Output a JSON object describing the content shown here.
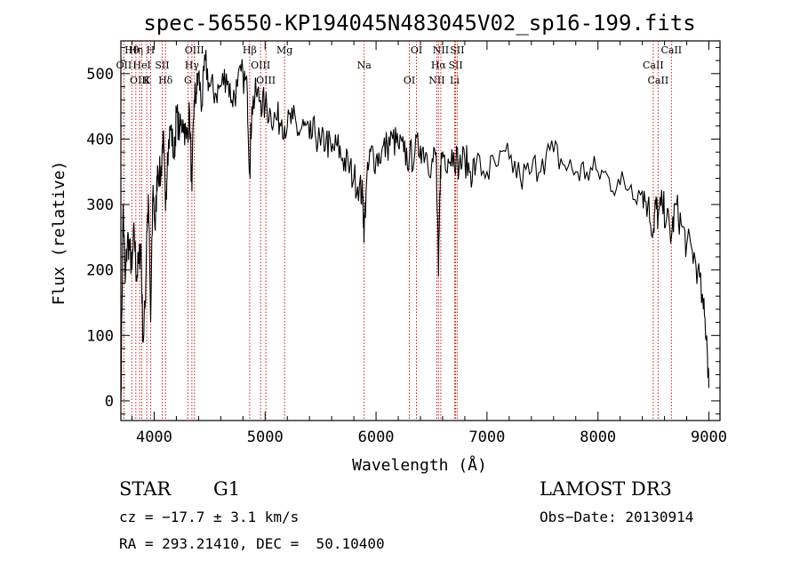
{
  "chart_data": {
    "type": "line",
    "title": "spec-56550-KP194045N483045V02_sp16-199.fits",
    "xlabel": "Wavelength (Å)",
    "ylabel": "Flux (relative)",
    "xlim": [
      3700,
      9100
    ],
    "ylim": [
      -30,
      550
    ],
    "xticks": [
      4000,
      5000,
      6000,
      7000,
      8000,
      9000
    ],
    "yticks": [
      0,
      100,
      200,
      300,
      400,
      500
    ],
    "series": [
      {
        "name": "spectrum",
        "x": [
          3700,
          3720,
          3740,
          3760,
          3780,
          3800,
          3820,
          3840,
          3860,
          3880,
          3900,
          3920,
          3933,
          3950,
          3968,
          3990,
          4010,
          4030,
          4060,
          4080,
          4102,
          4120,
          4150,
          4180,
          4200,
          4230,
          4260,
          4290,
          4320,
          4340,
          4360,
          4380,
          4400,
          4430,
          4460,
          4500,
          4550,
          4600,
          4650,
          4700,
          4750,
          4800,
          4840,
          4861,
          4880,
          4920,
          4960,
          5000,
          5050,
          5100,
          5150,
          5200,
          5250,
          5300,
          5350,
          5400,
          5450,
          5500,
          5550,
          5600,
          5650,
          5700,
          5750,
          5800,
          5850,
          5880,
          5893,
          5910,
          5950,
          6000,
          6050,
          6100,
          6150,
          6200,
          6250,
          6300,
          6350,
          6400,
          6450,
          6500,
          6540,
          6563,
          6580,
          6600,
          6650,
          6700,
          6750,
          6800,
          6850,
          6900,
          7000,
          7100,
          7200,
          7300,
          7400,
          7500,
          7600,
          7700,
          7800,
          7900,
          8000,
          8100,
          8200,
          8300,
          8400,
          8450,
          8498,
          8520,
          8542,
          8580,
          8620,
          8662,
          8700,
          8750,
          8800,
          8850,
          8900,
          8950,
          8980,
          9000
        ],
        "values": [
          0,
          300,
          180,
          250,
          230,
          200,
          260,
          190,
          210,
          240,
          90,
          150,
          260,
          300,
          120,
          330,
          260,
          360,
          340,
          410,
          290,
          380,
          420,
          370,
          440,
          410,
          430,
          400,
          440,
          320,
          460,
          470,
          500,
          450,
          520,
          480,
          470,
          480,
          500,
          460,
          480,
          500,
          470,
          350,
          450,
          470,
          460,
          450,
          440,
          430,
          430,
          420,
          430,
          410,
          420,
          400,
          410,
          390,
          400,
          380,
          390,
          370,
          360,
          340,
          330,
          310,
          260,
          320,
          380,
          370,
          380,
          390,
          400,
          390,
          380,
          370,
          380,
          390,
          380,
          360,
          380,
          190,
          360,
          380,
          370,
          380,
          360,
          370,
          350,
          360,
          350,
          360,
          370,
          340,
          350,
          370,
          380,
          360,
          350,
          350,
          350,
          340,
          330,
          330,
          320,
          300,
          260,
          300,
          280,
          300,
          280,
          250,
          300,
          270,
          240,
          230,
          200,
          140,
          100,
          20
        ]
      }
    ],
    "lines": [
      {
        "name": "Hθ",
        "x": 3798
      },
      {
        "name": "OII",
        "x": 3727
      },
      {
        "name": "OIII",
        "x": 3869
      },
      {
        "name": "Hη",
        "x": 3835
      },
      {
        "name": "HeI",
        "x": 3889
      },
      {
        "name": "K",
        "x": 3933
      },
      {
        "name": "H",
        "x": 3968
      },
      {
        "name": "SII",
        "x": 4072
      },
      {
        "name": "Hδ",
        "x": 4102
      },
      {
        "name": "OIII",
        "x": 4363
      },
      {
        "name": "Hγ",
        "x": 4340
      },
      {
        "name": "G",
        "x": 4304
      },
      {
        "name": "Hβ",
        "x": 4861
      },
      {
        "name": "OIII",
        "x": 4959
      },
      {
        "name": "OIII",
        "x": 5007
      },
      {
        "name": "Mg",
        "x": 5175
      },
      {
        "name": "Na",
        "x": 5893
      },
      {
        "name": "OI",
        "x": 6300
      },
      {
        "name": "OI",
        "x": 6364
      },
      {
        "name": "Hα",
        "x": 6563
      },
      {
        "name": "NII",
        "x": 6548
      },
      {
        "name": "NII",
        "x": 6584
      },
      {
        "name": "SII",
        "x": 6717
      },
      {
        "name": "Li",
        "x": 6708
      },
      {
        "name": "SII",
        "x": 6731
      },
      {
        "name": "CaII",
        "x": 8498
      },
      {
        "name": "CaII",
        "x": 8542
      },
      {
        "name": "CaII",
        "x": 8662
      }
    ],
    "line_color": "#cc0000",
    "trace_color": "#000000"
  },
  "info": {
    "class": "STAR",
    "subclass": "G1",
    "survey": "LAMOST DR3",
    "cz": "cz = −17.7 ± 3.1 km/s",
    "obs_date": "Obs−Date: 20130914",
    "coords": "RA = 293.21410, DEC =  50.10400"
  }
}
